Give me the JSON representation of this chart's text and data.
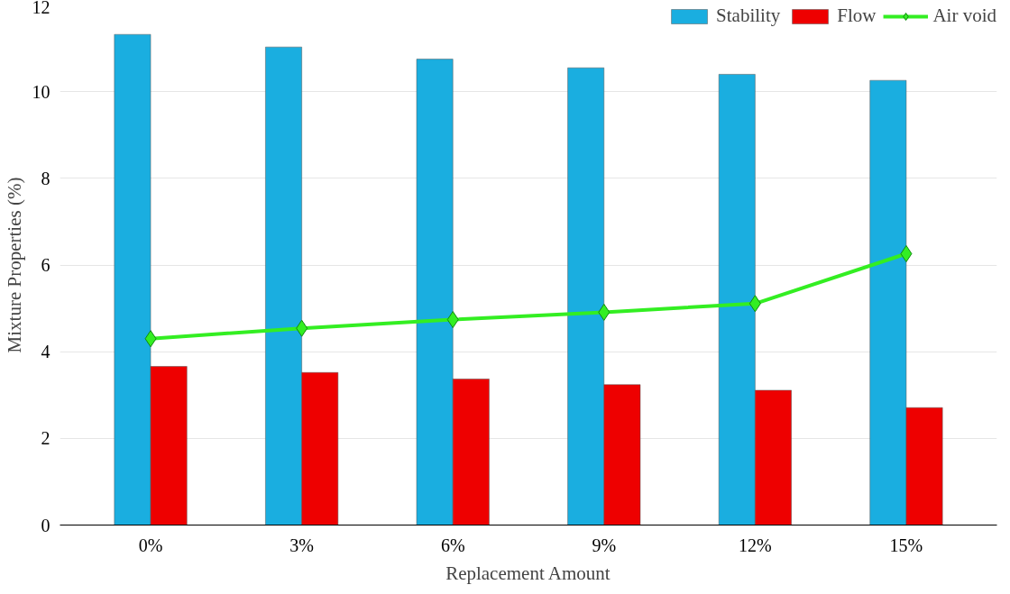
{
  "chart_data": {
    "type": "bar",
    "xlabel": "Replacement Amount",
    "ylabel": "Mixture Properties (%)",
    "categories": [
      "0%",
      "3%",
      "6%",
      "9%",
      "12%",
      "15%"
    ],
    "series": [
      {
        "name": "Stability",
        "color": "#1aaee0",
        "values": [
          11.32,
          11.03,
          10.75,
          10.55,
          10.4,
          10.26
        ]
      },
      {
        "name": "Flow",
        "color": "#ee0000",
        "values": [
          3.66,
          3.52,
          3.37,
          3.24,
          3.11,
          2.71
        ]
      },
      {
        "name": "Air void",
        "type": "line",
        "color": "#33ee22",
        "marker": "diamond",
        "line_style": "solid",
        "values": [
          4.3,
          4.54,
          4.74,
          4.91,
          5.11,
          6.26
        ]
      }
    ],
    "ylim": [
      0,
      12
    ],
    "yticks": [
      0,
      2,
      4,
      6,
      8,
      10,
      12
    ],
    "grid": "y",
    "legend": "top right"
  }
}
